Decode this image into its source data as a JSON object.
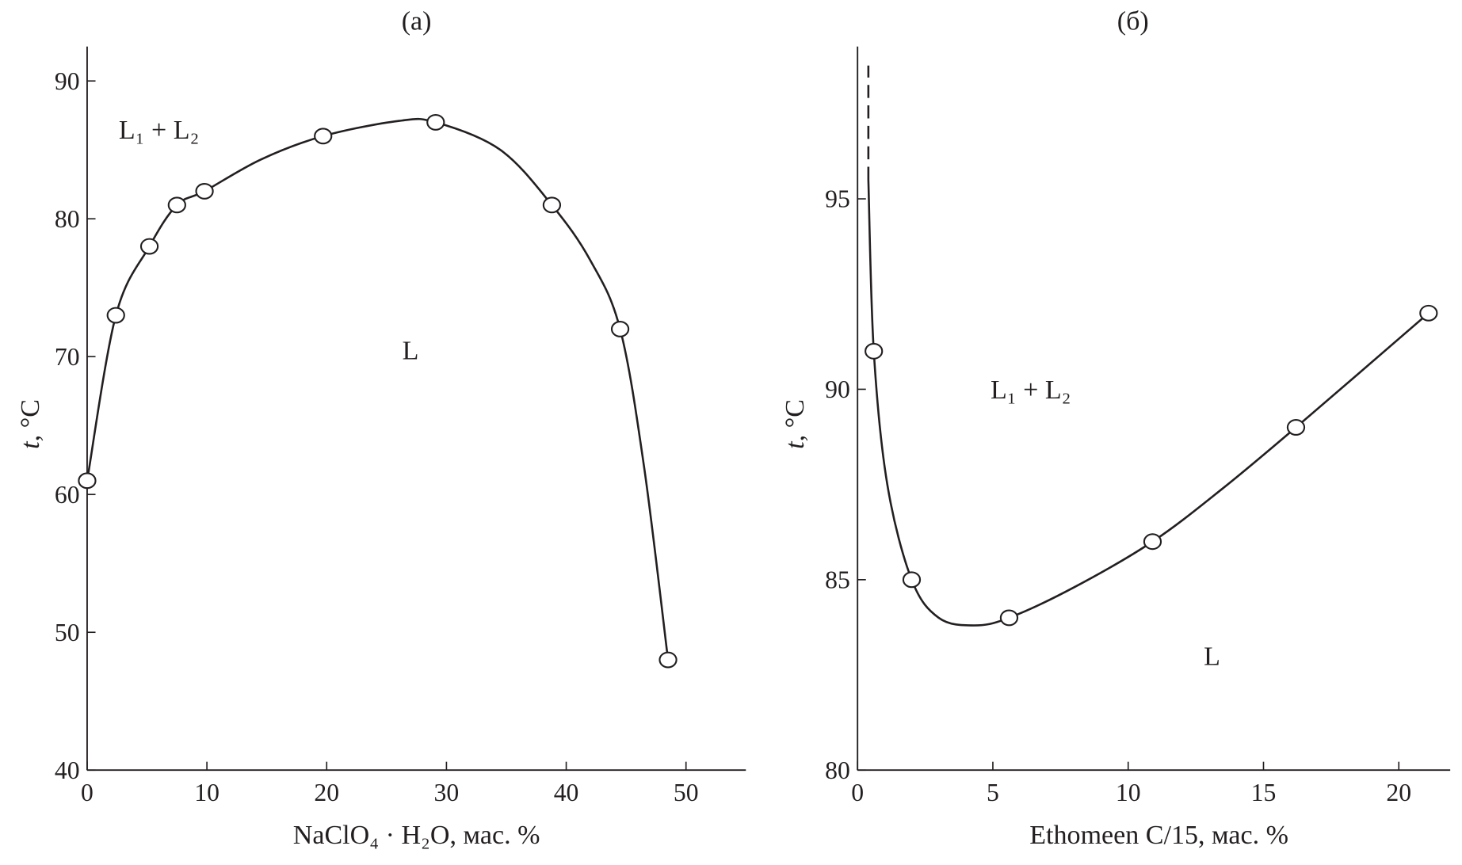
{
  "chart_data": [
    {
      "type": "scatter",
      "title": "(a)",
      "xlabel": "NaClO₄ · H₂O, мас. %",
      "ylabel_italic": "t",
      "ylabel_rest": ", °C",
      "xlim": [
        0,
        55
      ],
      "ylim": [
        40,
        92.5
      ],
      "xticks": [
        0,
        10,
        20,
        30,
        40,
        50
      ],
      "yticks": [
        40,
        50,
        60,
        70,
        80,
        90
      ],
      "grid": false,
      "points": {
        "x": [
          0,
          2.4,
          5.2,
          7.5,
          9.8,
          19.7,
          29.1,
          38.8,
          44.5,
          48.5
        ],
        "y": [
          61,
          73,
          78,
          81,
          82,
          86,
          87,
          81,
          72,
          48
        ]
      },
      "curve": {
        "x": [
          0,
          2.4,
          5.2,
          7.5,
          9.8,
          14.5,
          19.7,
          26,
          29.1,
          34.5,
          38.8,
          42,
          44.5,
          46.5,
          48.5
        ],
        "y": [
          61,
          73,
          78,
          81,
          82,
          84.3,
          86,
          87.1,
          87,
          85,
          81,
          77,
          72,
          62,
          48
        ]
      },
      "annotations": [
        {
          "text": "L₁ + L₂",
          "x": 6,
          "y": 86.5
        },
        {
          "text": "L",
          "x": 27,
          "y": 70.5
        }
      ]
    },
    {
      "type": "scatter",
      "title": "(б)",
      "xlabel": "Ethomeen C/15, мас. %",
      "ylabel_italic": "t",
      "ylabel_rest": ", °C",
      "xlim": [
        0,
        21.9
      ],
      "ylim": [
        80,
        99
      ],
      "xticks": [
        0,
        5,
        10,
        15,
        20
      ],
      "yticks": [
        80,
        85,
        90,
        95
      ],
      "grid": false,
      "points": {
        "x": [
          0.6,
          2,
          5.6,
          10.9,
          16.2,
          21.1
        ],
        "y": [
          91,
          85,
          84,
          86,
          89,
          92
        ]
      },
      "curve": {
        "x": [
          0.4,
          0.6,
          1.1,
          2,
          3,
          4.3,
          5.6,
          8,
          10.9,
          13.5,
          16.2,
          21.1
        ],
        "y": [
          95.5,
          91,
          87.5,
          85,
          84,
          83.8,
          84,
          84.8,
          86,
          87.4,
          89,
          92
        ]
      },
      "dashed": {
        "x": [
          0.4,
          0.4
        ],
        "y": [
          95.5,
          98.5
        ]
      },
      "annotations": [
        {
          "text": "L₁ + L₂",
          "x": 6.4,
          "y": 90
        },
        {
          "text": "L",
          "x": 13.1,
          "y": 83
        }
      ]
    }
  ]
}
